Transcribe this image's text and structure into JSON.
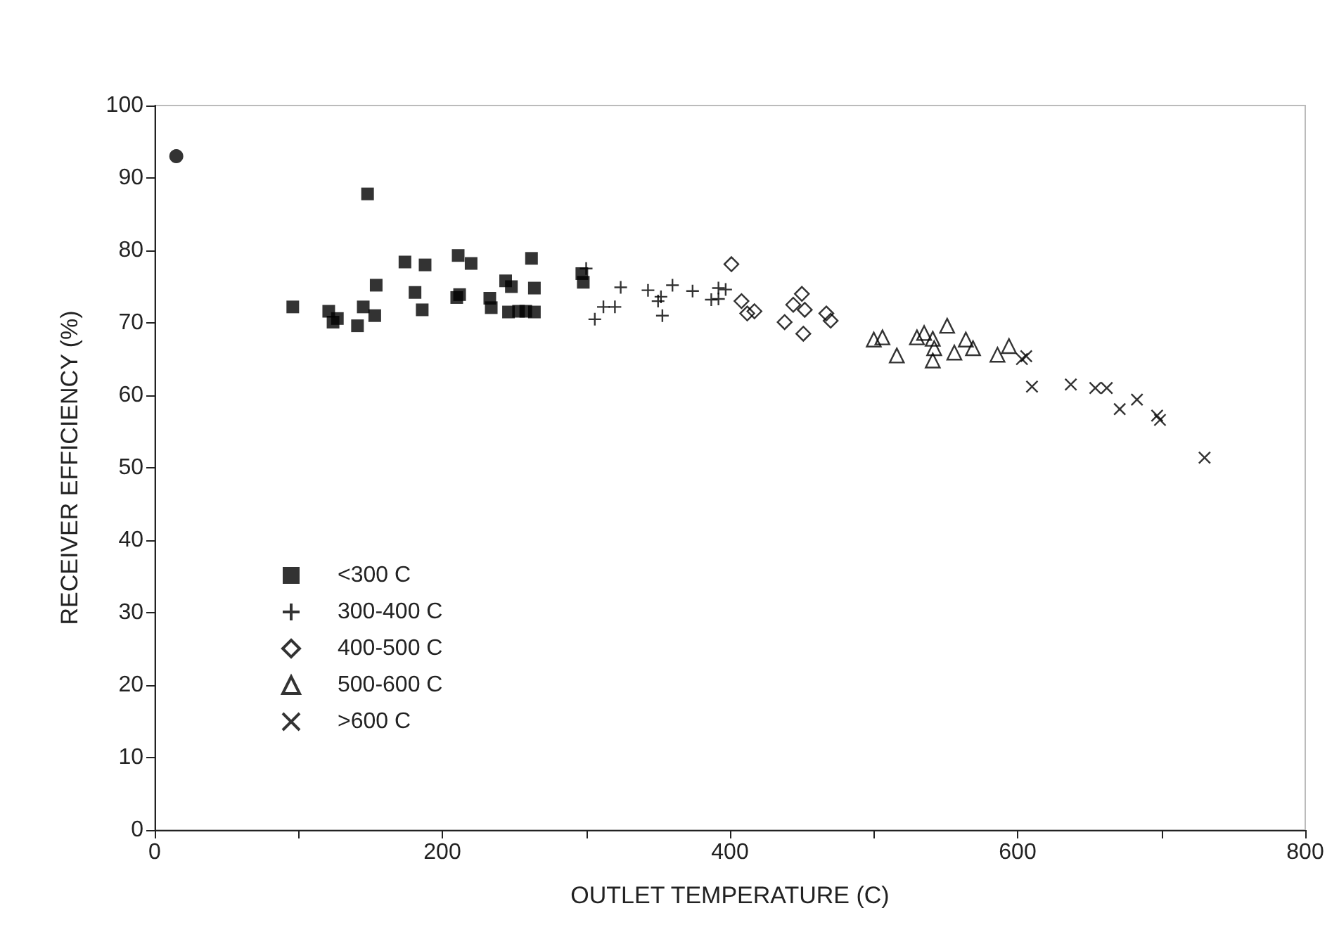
{
  "chart_data": {
    "type": "scatter",
    "xlabel": "OUTLET TEMPERATURE (C)",
    "ylabel": "RECEIVER EFFICIENCY (%)",
    "xlim": [
      0,
      800
    ],
    "xticks": [
      0,
      {
        "value": 100,
        "label": null
      },
      200,
      {
        "value": 300,
        "label": null
      },
      400,
      {
        "value": 500,
        "label": null
      },
      600,
      {
        "value": 700,
        "label": null
      },
      800
    ],
    "ylim": [
      0,
      100
    ],
    "yticks": [
      0,
      10,
      20,
      30,
      40,
      50,
      60,
      70,
      80,
      90,
      100
    ],
    "grid": false,
    "legend": "bottom left",
    "series": [
      {
        "name": "<300 C",
        "color": "#000000",
        "marker": "square",
        "x": [
          96,
          121,
          124,
          127,
          141,
          145,
          153,
          148,
          154,
          174,
          181,
          188,
          186,
          211,
          220,
          212,
          210,
          233,
          234,
          244,
          248,
          246,
          253,
          258,
          264,
          262,
          264,
          297,
          298
        ],
        "values": [
          72.2,
          71.6,
          70.1,
          70.6,
          69.6,
          72.2,
          71.0,
          87.8,
          75.2,
          78.4,
          74.2,
          78.0,
          71.8,
          79.3,
          78.2,
          73.9,
          73.5,
          73.4,
          72.1,
          75.8,
          75.0,
          71.5,
          71.6,
          71.6,
          71.5,
          78.9,
          74.8,
          76.8,
          75.6
        ]
      },
      {
        "name": "300-400 C",
        "color": "#000000",
        "marker": "plus",
        "x": [
          300,
          306,
          312,
          320,
          324,
          343,
          350,
          352,
          353,
          360,
          374,
          387,
          392,
          392,
          397
        ],
        "values": [
          77.5,
          70.5,
          72.2,
          72.2,
          74.9,
          74.5,
          73.0,
          73.6,
          71.0,
          75.2,
          74.4,
          73.2,
          73.3,
          74.8,
          74.6
        ]
      },
      {
        "name": "400-500 C",
        "color": "#000000",
        "marker": "diamond",
        "x": [
          401,
          408,
          412,
          417,
          438,
          444,
          450,
          452,
          451,
          467,
          470
        ],
        "values": [
          78.1,
          73.0,
          71.3,
          71.6,
          70.1,
          72.5,
          74.0,
          71.8,
          68.5,
          71.3,
          70.3
        ]
      },
      {
        "name": "500-600 C",
        "color": "#000000",
        "marker": "triangle",
        "x": [
          500,
          506,
          516,
          530,
          535,
          541,
          542,
          541,
          551,
          556,
          564,
          569,
          586,
          594
        ],
        "values": [
          67.7,
          68.0,
          65.5,
          68.0,
          68.6,
          67.8,
          66.5,
          64.8,
          69.6,
          65.9,
          67.7,
          66.5,
          65.6,
          66.8
        ]
      },
      {
        "name": ">600 C",
        "color": "#000000",
        "marker": "cross",
        "x": [
          603,
          606,
          610,
          637,
          654,
          662,
          671,
          683,
          697,
          699,
          730
        ],
        "values": [
          65.0,
          65.4,
          61.2,
          61.5,
          61.0,
          61.0,
          58.1,
          59.4,
          57.2,
          56.6,
          51.4
        ]
      },
      {
        "color": "#000000",
        "marker": "circle",
        "x": [
          15
        ],
        "values": [
          93
        ]
      }
    ]
  }
}
